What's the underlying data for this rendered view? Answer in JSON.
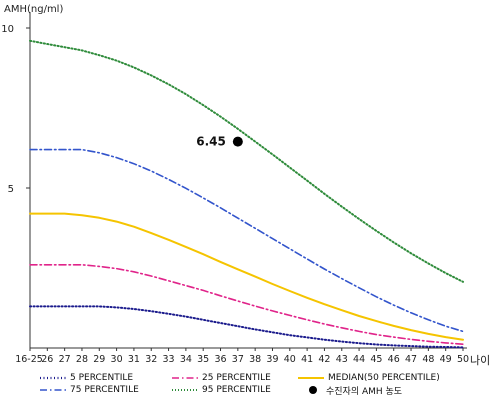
{
  "chart_data": {
    "type": "line",
    "ylabel": "AMH(ng/ml)",
    "xlabel": "나이",
    "x_ticks": [
      "16-25",
      "26",
      "27",
      "28",
      "29",
      "30",
      "31",
      "32",
      "33",
      "34",
      "35",
      "36",
      "37",
      "38",
      "39",
      "40",
      "41",
      "42",
      "43",
      "44",
      "45",
      "46",
      "47",
      "48",
      "49",
      "50"
    ],
    "ylim": [
      0,
      10.5
    ],
    "y_ticks": [
      5,
      10
    ],
    "grid": false,
    "legend_position": "bottom",
    "series": [
      {
        "name": "5 PERCENTILE",
        "color": "#1a1a8c",
        "style": "dotted",
        "values": [
          1.3,
          1.3,
          1.3,
          1.3,
          1.3,
          1.27,
          1.22,
          1.15,
          1.07,
          0.98,
          0.88,
          0.78,
          0.68,
          0.58,
          0.49,
          0.4,
          0.33,
          0.26,
          0.2,
          0.15,
          0.11,
          0.08,
          0.06,
          0.04,
          0.03,
          0.02
        ]
      },
      {
        "name": "25 PERCENTILE",
        "color": "#e0248a",
        "style": "dashdot",
        "values": [
          2.6,
          2.6,
          2.6,
          2.6,
          2.55,
          2.48,
          2.38,
          2.25,
          2.1,
          1.95,
          1.8,
          1.63,
          1.47,
          1.31,
          1.16,
          1.02,
          0.88,
          0.75,
          0.63,
          0.52,
          0.42,
          0.34,
          0.27,
          0.21,
          0.16,
          0.12
        ]
      },
      {
        "name": "MEDIAN(50 PERCENTILE)",
        "color": "#f5c400",
        "style": "solid",
        "values": [
          4.2,
          4.2,
          4.2,
          4.15,
          4.07,
          3.95,
          3.79,
          3.59,
          3.38,
          3.16,
          2.93,
          2.69,
          2.46,
          2.23,
          2.0,
          1.78,
          1.57,
          1.37,
          1.18,
          1.0,
          0.84,
          0.69,
          0.56,
          0.44,
          0.34,
          0.26
        ]
      },
      {
        "name": "75 PERCENTILE",
        "color": "#3355cc",
        "style": "dashdot",
        "values": [
          6.2,
          6.2,
          6.2,
          6.2,
          6.1,
          5.95,
          5.76,
          5.53,
          5.27,
          4.99,
          4.69,
          4.38,
          4.06,
          3.74,
          3.42,
          3.1,
          2.78,
          2.47,
          2.17,
          1.88,
          1.6,
          1.34,
          1.1,
          0.88,
          0.68,
          0.52
        ]
      },
      {
        "name": "95 PERCENTILE",
        "color": "#2e8b3a",
        "style": "dotted",
        "values": [
          9.6,
          9.5,
          9.4,
          9.3,
          9.15,
          8.98,
          8.77,
          8.52,
          8.24,
          7.93,
          7.59,
          7.23,
          6.85,
          6.45,
          6.05,
          5.64,
          5.23,
          4.82,
          4.42,
          4.03,
          3.66,
          3.3,
          2.96,
          2.64,
          2.34,
          2.07
        ]
      }
    ],
    "marker": {
      "name": "수진자의 AMH 농도",
      "x": "37",
      "y": 6.45,
      "label": "6.45",
      "color": "#000000"
    }
  }
}
